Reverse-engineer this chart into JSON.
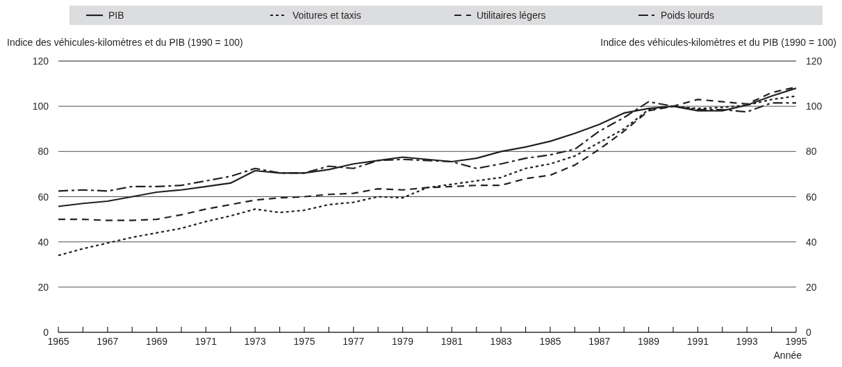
{
  "chart_data": {
    "type": "line",
    "xlabel": "Année",
    "ylabel": "Indice des véhicules-kilomètres et du PIB (1990 = 100)",
    "y2label": "Indice des véhicules-kilomètres et du PIB (1990 = 100)",
    "x": [
      1965,
      1966,
      1967,
      1968,
      1969,
      1970,
      1971,
      1972,
      1973,
      1974,
      1975,
      1976,
      1977,
      1978,
      1979,
      1980,
      1981,
      1982,
      1983,
      1984,
      1985,
      1986,
      1987,
      1988,
      1989,
      1990,
      1991,
      1992,
      1993,
      1994,
      1995
    ],
    "xlim": [
      1965,
      1995
    ],
    "xticks": [
      1965,
      {
        "value": 1966,
        "label": null
      },
      1967,
      {
        "value": 1968,
        "label": null
      },
      1969,
      {
        "value": 1970,
        "label": null
      },
      1971,
      {
        "value": 1972,
        "label": null
      },
      1973,
      {
        "value": 1974,
        "label": null
      },
      1975,
      {
        "value": 1976,
        "label": null
      },
      1977,
      {
        "value": 1978,
        "label": null
      },
      1979,
      {
        "value": 1980,
        "label": null
      },
      1981,
      {
        "value": 1982,
        "label": null
      },
      1983,
      {
        "value": 1984,
        "label": null
      },
      1985,
      {
        "value": 1986,
        "label": null
      },
      1987,
      {
        "value": 1988,
        "label": null
      },
      1989,
      {
        "value": 1990,
        "label": null
      },
      1991,
      {
        "value": 1992,
        "label": null
      },
      1993,
      {
        "value": 1994,
        "label": null
      },
      1995
    ],
    "ylim": [
      0,
      120
    ],
    "yticks": [
      0,
      20,
      40,
      60,
      80,
      100,
      120
    ],
    "y2lim": [
      0,
      120
    ],
    "y2ticks": [
      0,
      20,
      40,
      60,
      80,
      100,
      120
    ],
    "grid": "y",
    "legend": "top",
    "series": [
      {
        "name": "PIB",
        "color": "#231f20",
        "line_style": "solid",
        "values": [
          55.7,
          57,
          58,
          60,
          62,
          63,
          64.5,
          66,
          71.5,
          70.5,
          70.5,
          72,
          74.5,
          76,
          77.5,
          76.5,
          75.5,
          77,
          80,
          82,
          84.5,
          88,
          92,
          97,
          99,
          100,
          98,
          98,
          100.5,
          104.5,
          108
        ]
      },
      {
        "name": "Voitures et taxis",
        "color": "#231f20",
        "line_style": "dotted",
        "values": [
          34,
          37,
          39.5,
          42,
          44,
          46,
          49,
          51.5,
          54.5,
          53,
          54,
          56.5,
          57.5,
          60,
          59.5,
          64,
          65.5,
          67,
          68.5,
          72.5,
          74.5,
          78,
          84,
          90,
          98.5,
          100,
          99,
          99.5,
          100.5,
          103,
          104.5
        ]
      },
      {
        "name": "Utilitaires légers",
        "color": "#231f20",
        "line_style": "dashed",
        "values": [
          50,
          50,
          49.5,
          49.5,
          50,
          52,
          54.5,
          56.5,
          58.5,
          59.5,
          60,
          61,
          61.5,
          63.5,
          63,
          64,
          64.5,
          65,
          65,
          68,
          69.5,
          74,
          81,
          89,
          98,
          100,
          103,
          102,
          101,
          106,
          108.5
        ]
      },
      {
        "name": "Poids lourds",
        "color": "#231f20",
        "line_style": "dashdot",
        "values": [
          62.5,
          63,
          62.5,
          64.5,
          64.5,
          65,
          67,
          69,
          72.5,
          70.5,
          70.5,
          73.5,
          72.5,
          76,
          76.5,
          76,
          75.5,
          72.5,
          74.5,
          77,
          78.5,
          81,
          89,
          95,
          102,
          100,
          98.5,
          98.5,
          97.5,
          101.5,
          101.5
        ]
      }
    ]
  }
}
